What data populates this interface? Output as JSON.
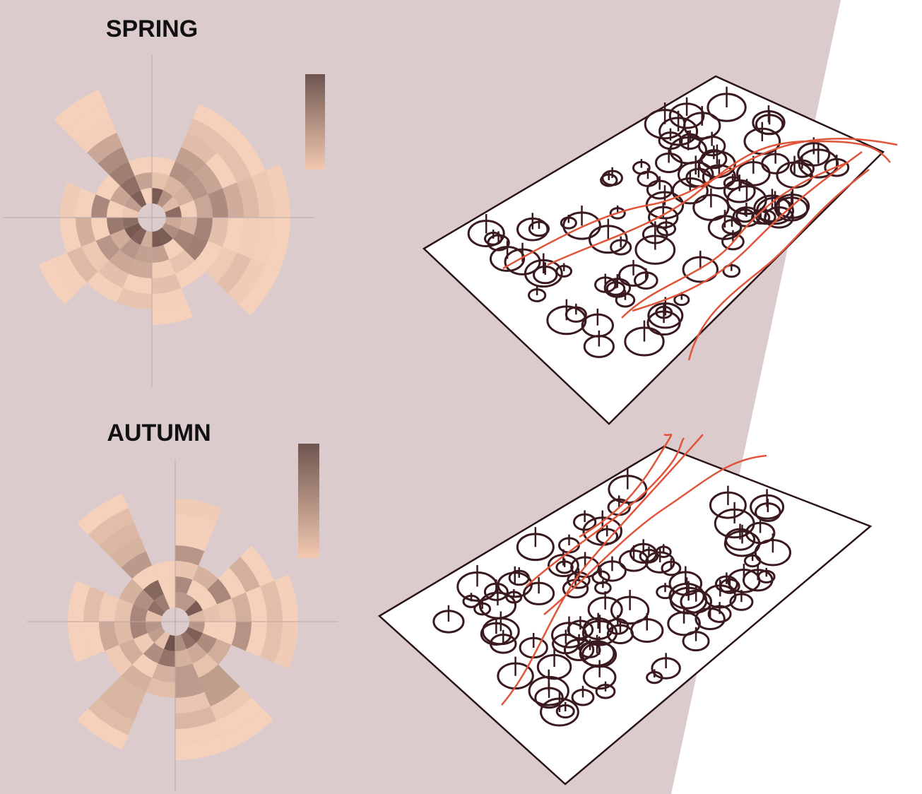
{
  "panels": [
    {
      "title": "SPRING"
    },
    {
      "title": "AUTUMN"
    }
  ]
}
